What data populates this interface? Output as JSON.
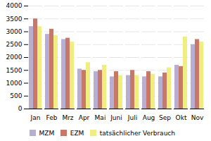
{
  "chart_data": {
    "type": "bar",
    "categories": [
      "Jan",
      "Feb",
      "Mrz",
      "Apr",
      "Mai",
      "Juni",
      "Juli",
      "Aug",
      "Sep",
      "Okt",
      "Nov"
    ],
    "series": [
      {
        "name": "MZM",
        "color": "#b8aed0",
        "values": [
          3200,
          2900,
          2700,
          1550,
          1450,
          1250,
          1300,
          1250,
          1250,
          1700,
          2500
        ]
      },
      {
        "name": "EZM",
        "color": "#c87868",
        "values": [
          3500,
          3100,
          2750,
          1500,
          1500,
          1450,
          1500,
          1450,
          1400,
          1650,
          2700
        ]
      },
      {
        "name": "tatsächlicher Verbrauch",
        "color": "#f0ee80",
        "values": [
          3200,
          2850,
          2600,
          1800,
          1700,
          1300,
          1300,
          1350,
          1600,
          2800,
          2600
        ]
      }
    ],
    "ylim": [
      0,
      4000
    ],
    "yticks": [
      0,
      500,
      1000,
      1500,
      2000,
      2500,
      3000,
      3500,
      4000
    ],
    "grid": true,
    "legend": "bottom"
  }
}
